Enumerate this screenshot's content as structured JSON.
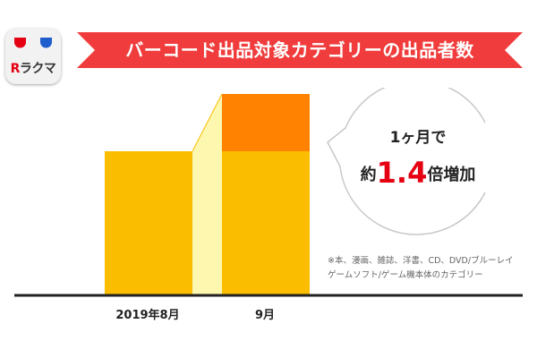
{
  "logo": {
    "r_letter": "R",
    "name": "ラクマ",
    "colors": {
      "badge_red": "#e50012",
      "badge_blue": "#1f5ccc"
    }
  },
  "banner": {
    "title": "バーコード出品対象カテゴリーの出品者数",
    "color": "#f03c3c"
  },
  "callout": {
    "line1": "1ヶ月で",
    "prefix": "約",
    "value": "1.4",
    "suffix": "倍増加"
  },
  "note": {
    "line1": "※本、漫画、雑誌、洋書、CD、DVD/ブルーレイ",
    "line2": "ゲームソフト/ゲーム機本体のカテゴリー"
  },
  "chart_data": {
    "type": "bar",
    "stacked": true,
    "categories": [
      "2019年8月",
      "9月"
    ],
    "series": [
      {
        "values": [
          1.0,
          1.0
        ],
        "color": "#fbbd00"
      },
      {
        "values": [
          0,
          0.4
        ],
        "color": "#ff8200"
      }
    ],
    "ylim": [
      0,
      1.5
    ],
    "connector_color": "#fdf7b0",
    "grid": false
  }
}
